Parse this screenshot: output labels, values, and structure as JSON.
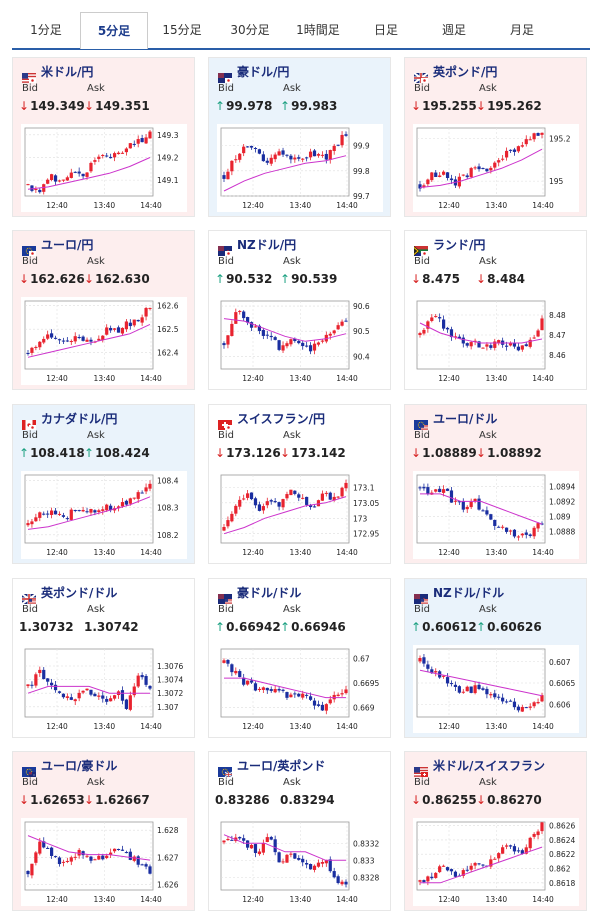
{
  "tabs": [
    {
      "label": "1分足",
      "active": false
    },
    {
      "label": "5分足",
      "active": true
    },
    {
      "label": "15分足",
      "active": false
    },
    {
      "label": "30分足",
      "active": false
    },
    {
      "label": "1時間足",
      "active": false
    },
    {
      "label": "日足",
      "active": false
    },
    {
      "label": "週足",
      "active": false
    },
    {
      "label": "月足",
      "active": false
    }
  ],
  "labels": {
    "bid": "Bid",
    "ask": "Ask"
  },
  "colors": {
    "up": "#1aa080",
    "down": "#d62020",
    "pink": "#fdeeee",
    "blue": "#eaf3fb",
    "candle_up": "#e8232f",
    "candle_down": "#1a2ea0",
    "ma": "#cc33cc"
  },
  "cards": [
    {
      "pair": "米ドル/円",
      "flag": "us-jp-flag-icon",
      "bg": "pink",
      "dir": "down",
      "bid": "149.349",
      "ask": "149.351",
      "chart_data": {
        "type": "candlestick",
        "ylim": [
          149.03,
          149.33
        ],
        "yticks": [
          "149.3",
          "149.2",
          "149.1"
        ],
        "ytick_values": [
          149.3,
          149.2,
          149.1
        ],
        "xticks": [
          "12:40",
          "13:40",
          "14:40"
        ],
        "trend": [
          149.08,
          149.05,
          149.12,
          149.1,
          149.15,
          149.13,
          149.18,
          149.22,
          149.2,
          149.24,
          149.27,
          149.32
        ],
        "ma": [
          149.06,
          149.07,
          149.09,
          149.11,
          149.13,
          149.16,
          149.2
        ]
      }
    },
    {
      "pair": "豪ドル/円",
      "flag": "au-jp-flag-icon",
      "bg": "blue",
      "dir": "up",
      "bid": "99.978",
      "ask": "99.983",
      "chart_data": {
        "type": "candlestick",
        "ylim": [
          99.7,
          99.97
        ],
        "yticks": [
          "99.9",
          "99.8",
          "99.7"
        ],
        "ytick_values": [
          99.9,
          99.8,
          99.7
        ],
        "xticks": [
          "12:40",
          "13:40",
          "14:40"
        ],
        "trend": [
          99.78,
          99.85,
          99.9,
          99.87,
          99.84,
          99.88,
          99.86,
          99.83,
          99.87,
          99.85,
          99.89,
          99.95
        ],
        "ma": [
          99.72,
          99.76,
          99.79,
          99.81,
          99.83,
          99.84,
          99.86
        ]
      }
    },
    {
      "pair": "英ポンド/円",
      "flag": "gb-jp-flag-icon",
      "bg": "pink",
      "dir": "down",
      "bid": "195.255",
      "ask": "195.262",
      "chart_data": {
        "type": "candlestick",
        "ylim": [
          194.93,
          195.25
        ],
        "yticks": [
          "195.2",
          "195"
        ],
        "ytick_values": [
          195.2,
          195.0
        ],
        "xticks": [
          "12:40",
          "13:40",
          "14:40"
        ],
        "trend": [
          194.98,
          195.02,
          195.05,
          194.99,
          195.03,
          195.06,
          195.04,
          195.1,
          195.13,
          195.16,
          195.2,
          195.24
        ],
        "ma": [
          194.97,
          194.98,
          195.0,
          195.03,
          195.06,
          195.1,
          195.15
        ]
      }
    },
    {
      "pair": "ユーロ/円",
      "flag": "eu-jp-flag-icon",
      "bg": "pink",
      "dir": "down",
      "bid": "162.626",
      "ask": "162.630",
      "chart_data": {
        "type": "candlestick",
        "ylim": [
          162.33,
          162.62
        ],
        "yticks": [
          "162.6",
          "162.5",
          "162.4"
        ],
        "ytick_values": [
          162.6,
          162.5,
          162.4
        ],
        "xticks": [
          "12:40",
          "13:40",
          "14:40"
        ],
        "trend": [
          162.4,
          162.45,
          162.48,
          162.43,
          162.47,
          162.46,
          162.44,
          162.5,
          162.49,
          162.52,
          162.55,
          162.6
        ],
        "ma": [
          162.38,
          162.4,
          162.42,
          162.44,
          162.46,
          162.48,
          162.52
        ]
      }
    },
    {
      "pair": "NZドル/円",
      "flag": "nz-jp-flag-icon",
      "bg": "white",
      "dir": "up",
      "bid": "90.532",
      "ask": "90.539",
      "chart_data": {
        "type": "candlestick",
        "ylim": [
          90.35,
          90.62
        ],
        "yticks": [
          "90.6",
          "90.5",
          "90.4"
        ],
        "ytick_values": [
          90.6,
          90.5,
          90.4
        ],
        "xticks": [
          "12:40",
          "13:40",
          "14:40"
        ],
        "trend": [
          90.45,
          90.58,
          90.55,
          90.5,
          90.47,
          90.44,
          90.48,
          90.46,
          90.43,
          90.47,
          90.5,
          90.54
        ],
        "ma": [
          90.55,
          90.54,
          90.51,
          90.48,
          90.46,
          90.47,
          90.49
        ]
      }
    },
    {
      "pair": "ランド/円",
      "flag": "za-jp-flag-icon",
      "bg": "white",
      "dir": "down",
      "bid": "8.475",
      "ask": "8.484",
      "chart_data": {
        "type": "candlestick",
        "ylim": [
          8.453,
          8.487
        ],
        "yticks": [
          "8.48",
          "8.47",
          "8.46"
        ],
        "ytick_values": [
          8.48,
          8.47,
          8.46
        ],
        "xticks": [
          "12:40",
          "13:40",
          "14:40"
        ],
        "trend": [
          8.47,
          8.48,
          8.476,
          8.468,
          8.465,
          8.466,
          8.464,
          8.467,
          8.465,
          8.463,
          8.468,
          8.477
        ],
        "ma": [
          8.476,
          8.471,
          8.468,
          8.466,
          8.466,
          8.466,
          8.468
        ]
      }
    },
    {
      "pair": "カナダドル/円",
      "flag": "ca-jp-flag-icon",
      "bg": "blue",
      "dir": "up",
      "bid": "108.418",
      "ask": "108.424",
      "chart_data": {
        "type": "candlestick",
        "ylim": [
          108.17,
          108.42
        ],
        "yticks": [
          "108.4",
          "108.3",
          "108.2"
        ],
        "ytick_values": [
          108.4,
          108.3,
          108.2
        ],
        "xticks": [
          "12:40",
          "13:40",
          "14:40"
        ],
        "trend": [
          108.24,
          108.27,
          108.29,
          108.26,
          108.28,
          108.3,
          108.28,
          108.31,
          108.3,
          108.32,
          108.35,
          108.4
        ],
        "ma": [
          108.22,
          108.23,
          108.25,
          108.27,
          108.29,
          108.31,
          108.34
        ]
      }
    },
    {
      "pair": "スイスフラン/円",
      "flag": "ch-jp-flag-icon",
      "bg": "white",
      "dir": "down",
      "bid": "173.126",
      "ask": "173.142",
      "chart_data": {
        "type": "candlestick",
        "ylim": [
          172.92,
          173.14
        ],
        "yticks": [
          "173.1",
          "173.05",
          "173",
          "172.95"
        ],
        "ytick_values": [
          173.1,
          173.05,
          173.0,
          172.95
        ],
        "xticks": [
          "12:40",
          "13:40",
          "14:40"
        ],
        "trend": [
          172.96,
          173.05,
          173.08,
          173.02,
          173.06,
          173.04,
          173.09,
          173.07,
          173.03,
          173.08,
          173.06,
          173.12
        ],
        "ma": [
          172.95,
          172.97,
          173.0,
          173.02,
          173.04,
          173.05,
          173.07
        ]
      }
    },
    {
      "pair": "ユーロ/ドル",
      "flag": "eu-us-flag-icon",
      "bg": "pink",
      "dir": "down",
      "bid": "1.08889",
      "ask": "1.08892",
      "chart_data": {
        "type": "candlestick",
        "ylim": [
          1.08865,
          1.08955
        ],
        "yticks": [
          "1.0894",
          "1.0892",
          "1.089",
          "1.0888"
        ],
        "ytick_values": [
          1.0894,
          1.0892,
          1.089,
          1.0888
        ],
        "xticks": [
          "12:40",
          "13:40",
          "14:40"
        ],
        "trend": [
          1.0894,
          1.0893,
          1.0894,
          1.0892,
          1.0891,
          1.0892,
          1.089,
          1.0889,
          1.0888,
          1.0887,
          1.0888,
          1.0889
        ],
        "ma": [
          1.0893,
          1.0893,
          1.0892,
          1.0892,
          1.0891,
          1.089,
          1.0889
        ]
      }
    },
    {
      "pair": "英ポンド/ドル",
      "flag": "gb-us-flag-icon",
      "bg": "white",
      "dir": "none",
      "bid": "1.30732",
      "ask": "1.30742",
      "chart_data": {
        "type": "candlestick",
        "ylim": [
          1.30685,
          1.30785
        ],
        "yticks": [
          "1.3076",
          "1.3074",
          "1.3072",
          "1.307"
        ],
        "ytick_values": [
          1.3076,
          1.3074,
          1.3072,
          1.307
        ],
        "xticks": [
          "12:40",
          "13:40",
          "14:40"
        ],
        "trend": [
          1.3073,
          1.3075,
          1.3074,
          1.3072,
          1.3071,
          1.3073,
          1.3072,
          1.3071,
          1.3072,
          1.307,
          1.3075,
          1.3073
        ],
        "ma": [
          1.3072,
          1.3073,
          1.3073,
          1.3073,
          1.3072,
          1.3072,
          1.3072
        ]
      }
    },
    {
      "pair": "豪ドル/ドル",
      "flag": "au-us-flag-icon",
      "bg": "white",
      "dir": "up",
      "bid": "0.66942",
      "ask": "0.66946",
      "chart_data": {
        "type": "candlestick",
        "ylim": [
          0.6688,
          0.6702
        ],
        "yticks": [
          "0.67",
          "0.6695",
          "0.669"
        ],
        "ytick_values": [
          0.67,
          0.6695,
          0.669
        ],
        "xticks": [
          "12:40",
          "13:40",
          "14:40"
        ],
        "trend": [
          0.6699,
          0.6697,
          0.6695,
          0.6694,
          0.6693,
          0.6694,
          0.6692,
          0.6693,
          0.6691,
          0.669,
          0.6692,
          0.6694
        ],
        "ma": [
          0.6696,
          0.6696,
          0.6695,
          0.6694,
          0.6693,
          0.6692,
          0.6692
        ]
      }
    },
    {
      "pair": "NZドル/ドル",
      "flag": "nz-us-flag-icon",
      "bg": "blue",
      "dir": "up",
      "bid": "0.60612",
      "ask": "0.60626",
      "chart_data": {
        "type": "candlestick",
        "ylim": [
          0.6057,
          0.6073
        ],
        "yticks": [
          "0.607",
          "0.6065",
          "0.606"
        ],
        "ytick_values": [
          0.607,
          0.6065,
          0.606
        ],
        "xticks": [
          "12:40",
          "13:40",
          "14:40"
        ],
        "trend": [
          0.607,
          0.6068,
          0.6066,
          0.6064,
          0.6063,
          0.6064,
          0.6062,
          0.6061,
          0.606,
          0.6059,
          0.606,
          0.6062
        ],
        "ma": [
          0.6068,
          0.6067,
          0.6066,
          0.6065,
          0.6064,
          0.6063,
          0.6062
        ]
      }
    },
    {
      "pair": "ユーロ/豪ドル",
      "flag": "eu-au-flag-icon",
      "bg": "pink",
      "dir": "down",
      "bid": "1.62653",
      "ask": "1.62667",
      "chart_data": {
        "type": "candlestick",
        "ylim": [
          1.6258,
          1.6283
        ],
        "yticks": [
          "1.628",
          "1.627",
          "1.626"
        ],
        "ytick_values": [
          1.628,
          1.627,
          1.626
        ],
        "xticks": [
          "12:40",
          "13:40",
          "14:40"
        ],
        "trend": [
          1.6265,
          1.6275,
          1.6272,
          1.6268,
          1.627,
          1.6272,
          1.6269,
          1.6271,
          1.6273,
          1.627,
          1.6268,
          1.6265
        ],
        "ma": [
          1.6278,
          1.6275,
          1.6272,
          1.6271,
          1.6271,
          1.627,
          1.6269
        ]
      }
    },
    {
      "pair": "ユーロ/英ポンド",
      "flag": "eu-gb-flag-icon",
      "bg": "white",
      "dir": "none",
      "bid": "0.83286",
      "ask": "0.83294",
      "chart_data": {
        "type": "candlestick",
        "ylim": [
          0.83265,
          0.83345
        ],
        "yticks": [
          "0.8332",
          "0.833",
          "0.8328"
        ],
        "ytick_values": [
          0.8332,
          0.833,
          0.8328
        ],
        "xticks": [
          "12:40",
          "13:40",
          "14:40"
        ],
        "trend": [
          0.8332,
          0.8333,
          0.8332,
          0.8331,
          0.8333,
          0.833,
          0.8331,
          0.833,
          0.8329,
          0.833,
          0.8328,
          0.8327
        ],
        "ma": [
          0.8333,
          0.8332,
          0.8332,
          0.8331,
          0.8331,
          0.833,
          0.833
        ]
      }
    },
    {
      "pair": "米ドル/スイスフラン",
      "flag": "us-ch-flag-icon",
      "bg": "pink",
      "dir": "down",
      "bid": "0.86255",
      "ask": "0.86270",
      "chart_data": {
        "type": "candlestick",
        "ylim": [
          0.8617,
          0.86265
        ],
        "yticks": [
          "0.8626",
          "0.8624",
          "0.8622",
          "0.862",
          "0.8618"
        ],
        "ytick_values": [
          0.8626,
          0.8624,
          0.8622,
          0.862,
          0.8618
        ],
        "xticks": [
          "12:40",
          "13:40",
          "14:40"
        ],
        "trend": [
          0.8618,
          0.8619,
          0.862,
          0.8619,
          0.862,
          0.8621,
          0.862,
          0.8622,
          0.8623,
          0.8622,
          0.8624,
          0.8626
        ],
        "ma": [
          0.8618,
          0.8618,
          0.8619,
          0.862,
          0.8621,
          0.8622,
          0.8623
        ]
      }
    }
  ]
}
